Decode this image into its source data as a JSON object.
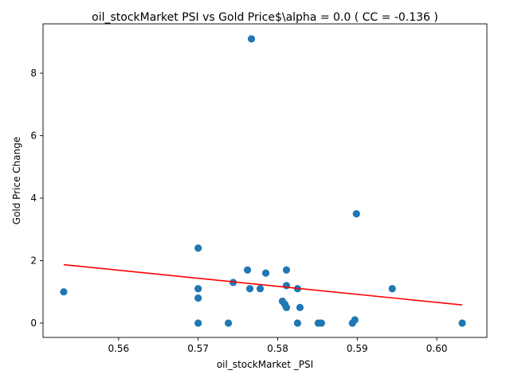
{
  "chart_data": {
    "type": "scatter",
    "title": "oil_stockMarket  PSI vs Gold Price$\\alpha = 0.0 ( CC = -0.136 )",
    "xlabel": "oil_stockMarket _PSI",
    "ylabel": "Gold Price Change",
    "xlim": [
      0.5505,
      0.6063
    ],
    "ylim": [
      -0.46,
      9.58
    ],
    "xticks": [
      0.56,
      0.57,
      0.58,
      0.59,
      0.6
    ],
    "xtick_labels": [
      "0.56",
      "0.57",
      "0.58",
      "0.59",
      "0.60"
    ],
    "yticks": [
      0,
      2,
      4,
      6,
      8
    ],
    "ytick_labels": [
      "0",
      "2",
      "4",
      "6",
      "8"
    ],
    "grid": false,
    "point_color": "#1f77b4",
    "line_color": "#ff0000",
    "points": [
      {
        "x": 0.5531,
        "y": 1.0
      },
      {
        "x": 0.57,
        "y": 2.4
      },
      {
        "x": 0.57,
        "y": 1.1
      },
      {
        "x": 0.57,
        "y": 0.8
      },
      {
        "x": 0.57,
        "y": 0.0
      },
      {
        "x": 0.5738,
        "y": 0.0
      },
      {
        "x": 0.5744,
        "y": 1.3
      },
      {
        "x": 0.5762,
        "y": 1.7
      },
      {
        "x": 0.5765,
        "y": 1.1
      },
      {
        "x": 0.5767,
        "y": 9.1
      },
      {
        "x": 0.5778,
        "y": 1.1
      },
      {
        "x": 0.5785,
        "y": 1.6
      },
      {
        "x": 0.5806,
        "y": 0.7
      },
      {
        "x": 0.5809,
        "y": 0.6
      },
      {
        "x": 0.5811,
        "y": 1.2
      },
      {
        "x": 0.5811,
        "y": 1.7
      },
      {
        "x": 0.5811,
        "y": 0.5
      },
      {
        "x": 0.5825,
        "y": 0.0
      },
      {
        "x": 0.5825,
        "y": 1.1
      },
      {
        "x": 0.5828,
        "y": 0.5
      },
      {
        "x": 0.5851,
        "y": 0.0
      },
      {
        "x": 0.5855,
        "y": 0.0
      },
      {
        "x": 0.5894,
        "y": 0.0
      },
      {
        "x": 0.5897,
        "y": 0.1
      },
      {
        "x": 0.5899,
        "y": 3.5
      },
      {
        "x": 0.5944,
        "y": 1.1
      },
      {
        "x": 0.6032,
        "y": 0.0
      }
    ],
    "fit_line": {
      "x": [
        0.5531,
        0.6032
      ],
      "y": [
        1.87,
        0.58
      ]
    }
  }
}
